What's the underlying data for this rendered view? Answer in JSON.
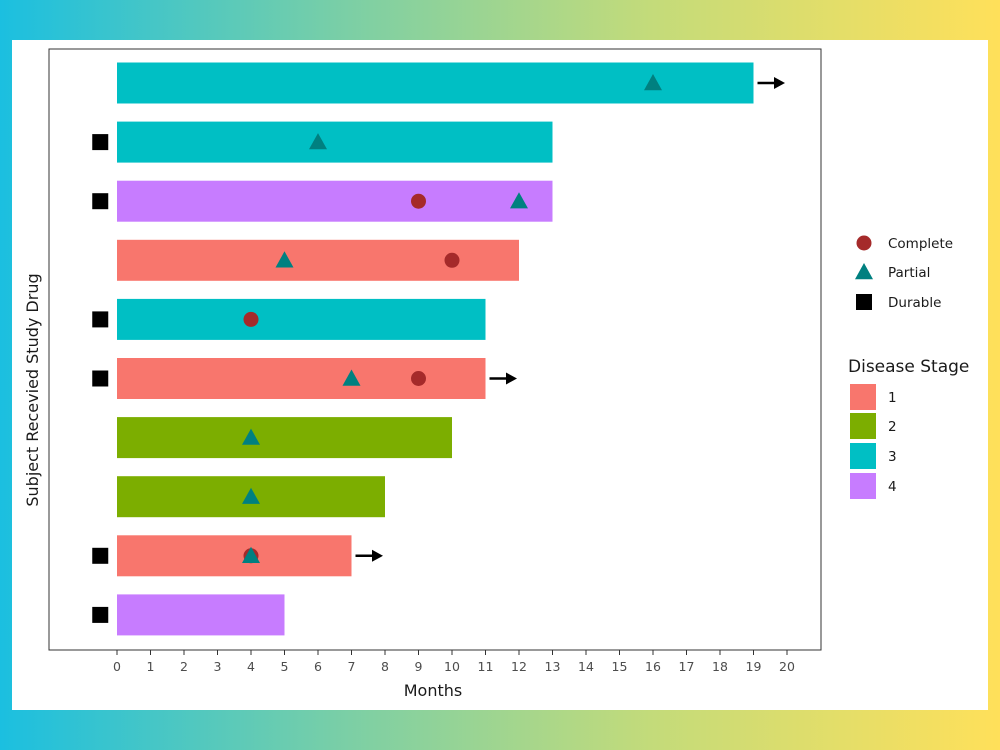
{
  "chart_data": {
    "type": "bar",
    "orientation": "horizontal",
    "title": "",
    "xlabel": "Months",
    "ylabel": "Subject Recevied Study Drug",
    "xlim": [
      0,
      20
    ],
    "x_ticks": [
      0,
      1,
      2,
      3,
      4,
      5,
      6,
      7,
      8,
      9,
      10,
      11,
      12,
      13,
      14,
      15,
      16,
      17,
      18,
      19,
      20
    ],
    "grid": false,
    "legend_position": "right",
    "stage_colors": {
      "1": "#F8766D",
      "2": "#7CAE00",
      "3": "#00BFC4",
      "4": "#C77CFF"
    },
    "event_colors": {
      "Complete": "#A52A2A",
      "Partial": "#008080",
      "Durable": "#000000"
    },
    "subjects": [
      {
        "months": 19,
        "stage": "3",
        "durable": false,
        "continuing": true,
        "complete": [],
        "partial": [
          16
        ]
      },
      {
        "months": 13,
        "stage": "3",
        "durable": true,
        "continuing": false,
        "complete": [],
        "partial": [
          6
        ]
      },
      {
        "months": 13,
        "stage": "4",
        "durable": true,
        "continuing": false,
        "complete": [
          9
        ],
        "partial": [
          12
        ]
      },
      {
        "months": 12,
        "stage": "1",
        "durable": false,
        "continuing": false,
        "complete": [
          10
        ],
        "partial": [
          5
        ]
      },
      {
        "months": 11,
        "stage": "3",
        "durable": true,
        "continuing": false,
        "complete": [
          4
        ],
        "partial": []
      },
      {
        "months": 11,
        "stage": "1",
        "durable": true,
        "continuing": true,
        "complete": [
          9
        ],
        "partial": [
          7
        ]
      },
      {
        "months": 10,
        "stage": "2",
        "durable": false,
        "continuing": false,
        "complete": [],
        "partial": [
          4
        ]
      },
      {
        "months": 8,
        "stage": "2",
        "durable": false,
        "continuing": false,
        "complete": [],
        "partial": [
          4
        ]
      },
      {
        "months": 7,
        "stage": "1",
        "durable": true,
        "continuing": true,
        "complete": [
          4
        ],
        "partial": [
          4
        ]
      },
      {
        "months": 5,
        "stage": "4",
        "durable": true,
        "continuing": false,
        "complete": [],
        "partial": []
      }
    ],
    "legend_events": [
      {
        "label": "Complete",
        "shape": "circle"
      },
      {
        "label": "Partial",
        "shape": "triangle"
      },
      {
        "label": "Durable",
        "shape": "square"
      }
    ],
    "legend_stage_title": "Disease Stage",
    "legend_stages": [
      "1",
      "2",
      "3",
      "4"
    ]
  }
}
